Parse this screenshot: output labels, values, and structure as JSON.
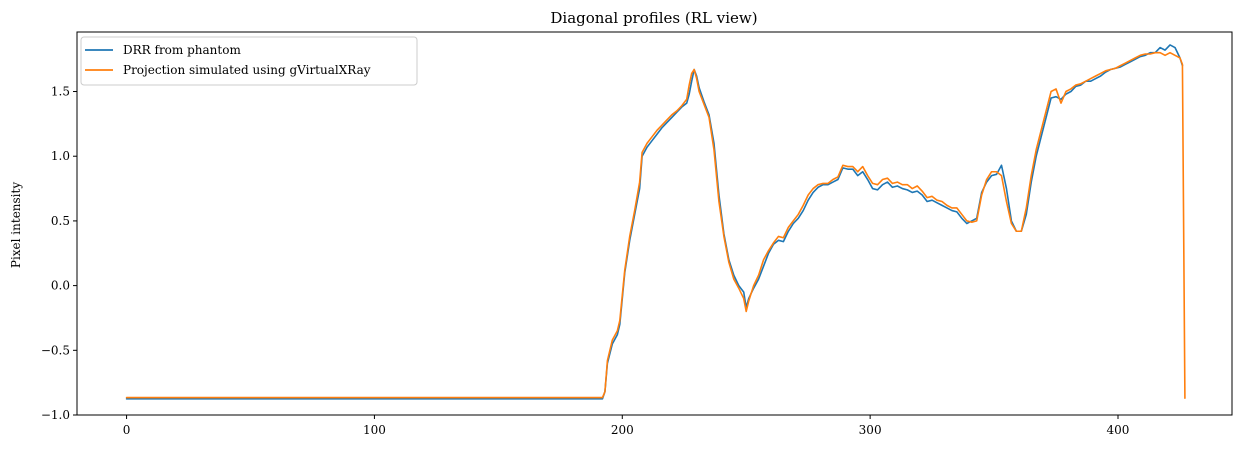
{
  "chart_data": {
    "type": "line",
    "title": "Diagonal profiles (RL view)",
    "xlabel": "",
    "ylabel": "Pixel intensity",
    "xlim": [
      -20,
      446
    ],
    "ylim": [
      -1.0,
      1.96
    ],
    "x_ticks": [
      0,
      100,
      200,
      300,
      400
    ],
    "y_ticks": [
      -1.0,
      -0.5,
      0.0,
      0.5,
      1.0,
      1.5
    ],
    "y_tick_labels": [
      "−1.0",
      "−0.5",
      "0.0",
      "0.5",
      "1.0",
      "1.5"
    ],
    "grid": false,
    "legend_position": "top-left",
    "series": [
      {
        "name": "DRR from phantom",
        "color": "#1f77b4",
        "points": [
          [
            0,
            -0.875
          ],
          [
            192,
            -0.875
          ],
          [
            193,
            -0.82
          ],
          [
            194,
            -0.6
          ],
          [
            196,
            -0.45
          ],
          [
            198,
            -0.38
          ],
          [
            199,
            -0.3
          ],
          [
            201,
            0.1
          ],
          [
            203,
            0.35
          ],
          [
            205,
            0.55
          ],
          [
            207,
            0.75
          ],
          [
            208,
            1.0
          ],
          [
            210,
            1.07
          ],
          [
            212,
            1.12
          ],
          [
            214,
            1.17
          ],
          [
            216,
            1.22
          ],
          [
            218,
            1.26
          ],
          [
            220,
            1.3
          ],
          [
            222,
            1.34
          ],
          [
            224,
            1.38
          ],
          [
            226,
            1.41
          ],
          [
            227,
            1.48
          ],
          [
            228,
            1.58
          ],
          [
            229,
            1.67
          ],
          [
            230,
            1.62
          ],
          [
            231,
            1.53
          ],
          [
            233,
            1.42
          ],
          [
            235,
            1.32
          ],
          [
            237,
            1.1
          ],
          [
            239,
            0.7
          ],
          [
            241,
            0.4
          ],
          [
            243,
            0.2
          ],
          [
            245,
            0.08
          ],
          [
            247,
            0.0
          ],
          [
            249,
            -0.05
          ],
          [
            250,
            -0.17
          ],
          [
            251,
            -0.1
          ],
          [
            253,
            -0.02
          ],
          [
            255,
            0.05
          ],
          [
            257,
            0.15
          ],
          [
            259,
            0.25
          ],
          [
            261,
            0.32
          ],
          [
            263,
            0.35
          ],
          [
            265,
            0.34
          ],
          [
            267,
            0.42
          ],
          [
            269,
            0.48
          ],
          [
            271,
            0.52
          ],
          [
            273,
            0.58
          ],
          [
            275,
            0.66
          ],
          [
            277,
            0.72
          ],
          [
            279,
            0.76
          ],
          [
            281,
            0.78
          ],
          [
            283,
            0.78
          ],
          [
            285,
            0.8
          ],
          [
            287,
            0.82
          ],
          [
            289,
            0.91
          ],
          [
            291,
            0.9
          ],
          [
            293,
            0.9
          ],
          [
            295,
            0.85
          ],
          [
            297,
            0.88
          ],
          [
            299,
            0.82
          ],
          [
            301,
            0.75
          ],
          [
            303,
            0.74
          ],
          [
            305,
            0.78
          ],
          [
            307,
            0.8
          ],
          [
            309,
            0.76
          ],
          [
            311,
            0.77
          ],
          [
            313,
            0.75
          ],
          [
            315,
            0.74
          ],
          [
            317,
            0.72
          ],
          [
            319,
            0.73
          ],
          [
            321,
            0.7
          ],
          [
            323,
            0.65
          ],
          [
            325,
            0.66
          ],
          [
            327,
            0.64
          ],
          [
            329,
            0.62
          ],
          [
            331,
            0.6
          ],
          [
            333,
            0.58
          ],
          [
            335,
            0.57
          ],
          [
            337,
            0.52
          ],
          [
            339,
            0.48
          ],
          [
            341,
            0.5
          ],
          [
            343,
            0.52
          ],
          [
            345,
            0.72
          ],
          [
            347,
            0.8
          ],
          [
            349,
            0.85
          ],
          [
            351,
            0.86
          ],
          [
            353,
            0.93
          ],
          [
            355,
            0.75
          ],
          [
            357,
            0.5
          ],
          [
            359,
            0.42
          ],
          [
            361,
            0.42
          ],
          [
            363,
            0.55
          ],
          [
            365,
            0.8
          ],
          [
            367,
            1.0
          ],
          [
            369,
            1.15
          ],
          [
            371,
            1.3
          ],
          [
            373,
            1.45
          ],
          [
            375,
            1.46
          ],
          [
            377,
            1.44
          ],
          [
            379,
            1.48
          ],
          [
            381,
            1.5
          ],
          [
            383,
            1.54
          ],
          [
            385,
            1.55
          ],
          [
            387,
            1.58
          ],
          [
            389,
            1.58
          ],
          [
            391,
            1.6
          ],
          [
            393,
            1.62
          ],
          [
            395,
            1.65
          ],
          [
            397,
            1.67
          ],
          [
            399,
            1.68
          ],
          [
            401,
            1.69
          ],
          [
            403,
            1.71
          ],
          [
            405,
            1.73
          ],
          [
            407,
            1.75
          ],
          [
            409,
            1.77
          ],
          [
            411,
            1.78
          ],
          [
            413,
            1.8
          ],
          [
            415,
            1.8
          ],
          [
            417,
            1.84
          ],
          [
            419,
            1.82
          ],
          [
            421,
            1.86
          ],
          [
            423,
            1.84
          ],
          [
            425,
            1.76
          ],
          [
            426,
            1.7
          ]
        ]
      },
      {
        "name": "Projection simulated using gVirtualXRay",
        "color": "#ff7f0e",
        "points": [
          [
            0,
            -0.865
          ],
          [
            192,
            -0.865
          ],
          [
            193,
            -0.82
          ],
          [
            194,
            -0.58
          ],
          [
            196,
            -0.42
          ],
          [
            198,
            -0.35
          ],
          [
            199,
            -0.27
          ],
          [
            201,
            0.12
          ],
          [
            203,
            0.38
          ],
          [
            205,
            0.58
          ],
          [
            207,
            0.8
          ],
          [
            208,
            1.03
          ],
          [
            210,
            1.1
          ],
          [
            212,
            1.15
          ],
          [
            214,
            1.2
          ],
          [
            216,
            1.24
          ],
          [
            218,
            1.28
          ],
          [
            220,
            1.32
          ],
          [
            222,
            1.35
          ],
          [
            224,
            1.39
          ],
          [
            226,
            1.44
          ],
          [
            227,
            1.55
          ],
          [
            228,
            1.64
          ],
          [
            229,
            1.67
          ],
          [
            230,
            1.6
          ],
          [
            231,
            1.5
          ],
          [
            233,
            1.4
          ],
          [
            235,
            1.3
          ],
          [
            237,
            1.05
          ],
          [
            239,
            0.65
          ],
          [
            241,
            0.38
          ],
          [
            243,
            0.18
          ],
          [
            245,
            0.05
          ],
          [
            247,
            -0.02
          ],
          [
            249,
            -0.1
          ],
          [
            250,
            -0.2
          ],
          [
            251,
            -0.12
          ],
          [
            253,
            0.0
          ],
          [
            255,
            0.08
          ],
          [
            257,
            0.2
          ],
          [
            259,
            0.27
          ],
          [
            261,
            0.33
          ],
          [
            263,
            0.38
          ],
          [
            265,
            0.37
          ],
          [
            267,
            0.45
          ],
          [
            269,
            0.5
          ],
          [
            271,
            0.55
          ],
          [
            273,
            0.62
          ],
          [
            275,
            0.7
          ],
          [
            277,
            0.75
          ],
          [
            279,
            0.78
          ],
          [
            281,
            0.79
          ],
          [
            283,
            0.79
          ],
          [
            285,
            0.82
          ],
          [
            287,
            0.84
          ],
          [
            289,
            0.93
          ],
          [
            291,
            0.92
          ],
          [
            293,
            0.92
          ],
          [
            295,
            0.88
          ],
          [
            297,
            0.92
          ],
          [
            299,
            0.85
          ],
          [
            301,
            0.79
          ],
          [
            303,
            0.78
          ],
          [
            305,
            0.82
          ],
          [
            307,
            0.83
          ],
          [
            309,
            0.79
          ],
          [
            311,
            0.8
          ],
          [
            313,
            0.78
          ],
          [
            315,
            0.78
          ],
          [
            317,
            0.75
          ],
          [
            319,
            0.77
          ],
          [
            321,
            0.73
          ],
          [
            323,
            0.68
          ],
          [
            325,
            0.69
          ],
          [
            327,
            0.66
          ],
          [
            329,
            0.65
          ],
          [
            331,
            0.62
          ],
          [
            333,
            0.6
          ],
          [
            335,
            0.6
          ],
          [
            337,
            0.55
          ],
          [
            339,
            0.5
          ],
          [
            341,
            0.49
          ],
          [
            343,
            0.5
          ],
          [
            345,
            0.7
          ],
          [
            347,
            0.82
          ],
          [
            349,
            0.88
          ],
          [
            351,
            0.88
          ],
          [
            353,
            0.85
          ],
          [
            355,
            0.65
          ],
          [
            357,
            0.48
          ],
          [
            359,
            0.42
          ],
          [
            361,
            0.42
          ],
          [
            363,
            0.6
          ],
          [
            365,
            0.85
          ],
          [
            367,
            1.05
          ],
          [
            369,
            1.2
          ],
          [
            371,
            1.35
          ],
          [
            373,
            1.5
          ],
          [
            375,
            1.52
          ],
          [
            377,
            1.41
          ],
          [
            379,
            1.5
          ],
          [
            381,
            1.52
          ],
          [
            383,
            1.55
          ],
          [
            385,
            1.56
          ],
          [
            387,
            1.58
          ],
          [
            389,
            1.6
          ],
          [
            391,
            1.62
          ],
          [
            393,
            1.64
          ],
          [
            395,
            1.66
          ],
          [
            397,
            1.67
          ],
          [
            399,
            1.68
          ],
          [
            401,
            1.7
          ],
          [
            403,
            1.72
          ],
          [
            405,
            1.74
          ],
          [
            407,
            1.76
          ],
          [
            409,
            1.78
          ],
          [
            411,
            1.79
          ],
          [
            413,
            1.79
          ],
          [
            415,
            1.8
          ],
          [
            417,
            1.8
          ],
          [
            419,
            1.78
          ],
          [
            421,
            1.8
          ],
          [
            423,
            1.78
          ],
          [
            425,
            1.76
          ],
          [
            426,
            1.71
          ],
          [
            427,
            -0.87
          ]
        ]
      }
    ]
  }
}
